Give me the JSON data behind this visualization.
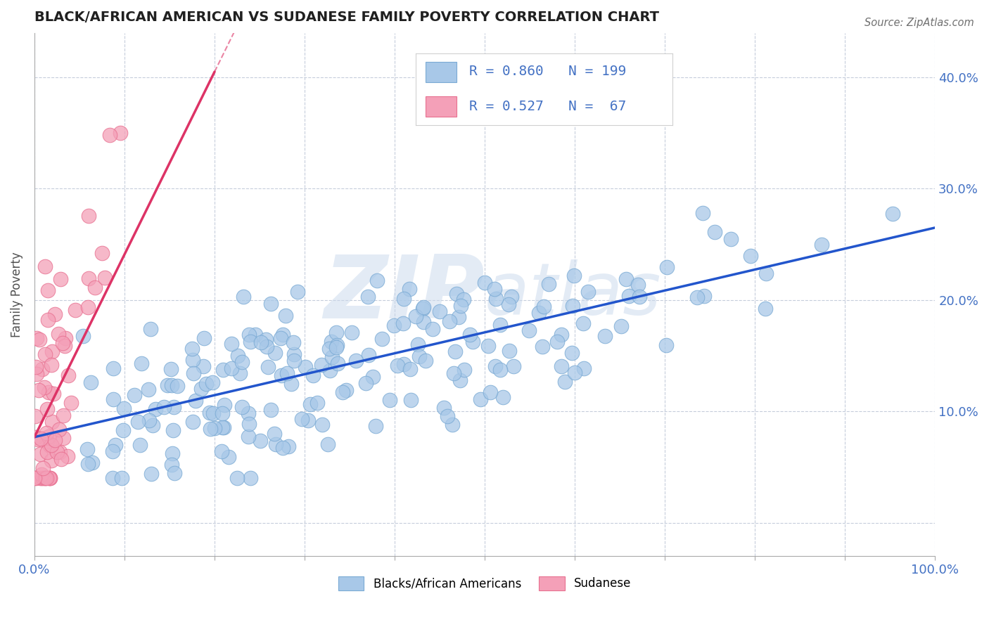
{
  "title": "BLACK/AFRICAN AMERICAN VS SUDANESE FAMILY POVERTY CORRELATION CHART",
  "source": "Source: ZipAtlas.com",
  "ylabel": "Family Poverty",
  "xlim": [
    0,
    1.0
  ],
  "ylim": [
    -0.03,
    0.44
  ],
  "xticks": [
    0.0,
    0.1,
    0.2,
    0.3,
    0.4,
    0.5,
    0.6,
    0.7,
    0.8,
    0.9,
    1.0
  ],
  "yticks": [
    0.0,
    0.1,
    0.2,
    0.3,
    0.4
  ],
  "ytick_labels": [
    "",
    "10.0%",
    "20.0%",
    "30.0%",
    "40.0%"
  ],
  "xtick_labels": [
    "0.0%",
    "",
    "",
    "",
    "",
    "",
    "",
    "",
    "",
    "",
    "100.0%"
  ],
  "blue_R": 0.86,
  "blue_N": 199,
  "pink_R": 0.527,
  "pink_N": 67,
  "blue_color": "#a8c8e8",
  "pink_color": "#f4a0b8",
  "blue_edge_color": "#7aaad4",
  "pink_edge_color": "#e87090",
  "blue_line_color": "#2255cc",
  "pink_line_color": "#dd3366",
  "watermark_color": "#c8d8ec",
  "legend_color": "#4472c4",
  "background_color": "#ffffff",
  "grid_color": "#c0c8d8",
  "title_color": "#202020",
  "source_color": "#707070",
  "blue_scatter_seed": 42,
  "pink_scatter_seed": 7,
  "blue_line_x0": 0.0,
  "blue_line_y0": 0.077,
  "blue_line_x1": 1.0,
  "blue_line_y1": 0.265,
  "pink_line_x0": 0.0,
  "pink_line_y0": 0.077,
  "pink_line_x1": 0.2,
  "pink_line_y1": 0.405
}
